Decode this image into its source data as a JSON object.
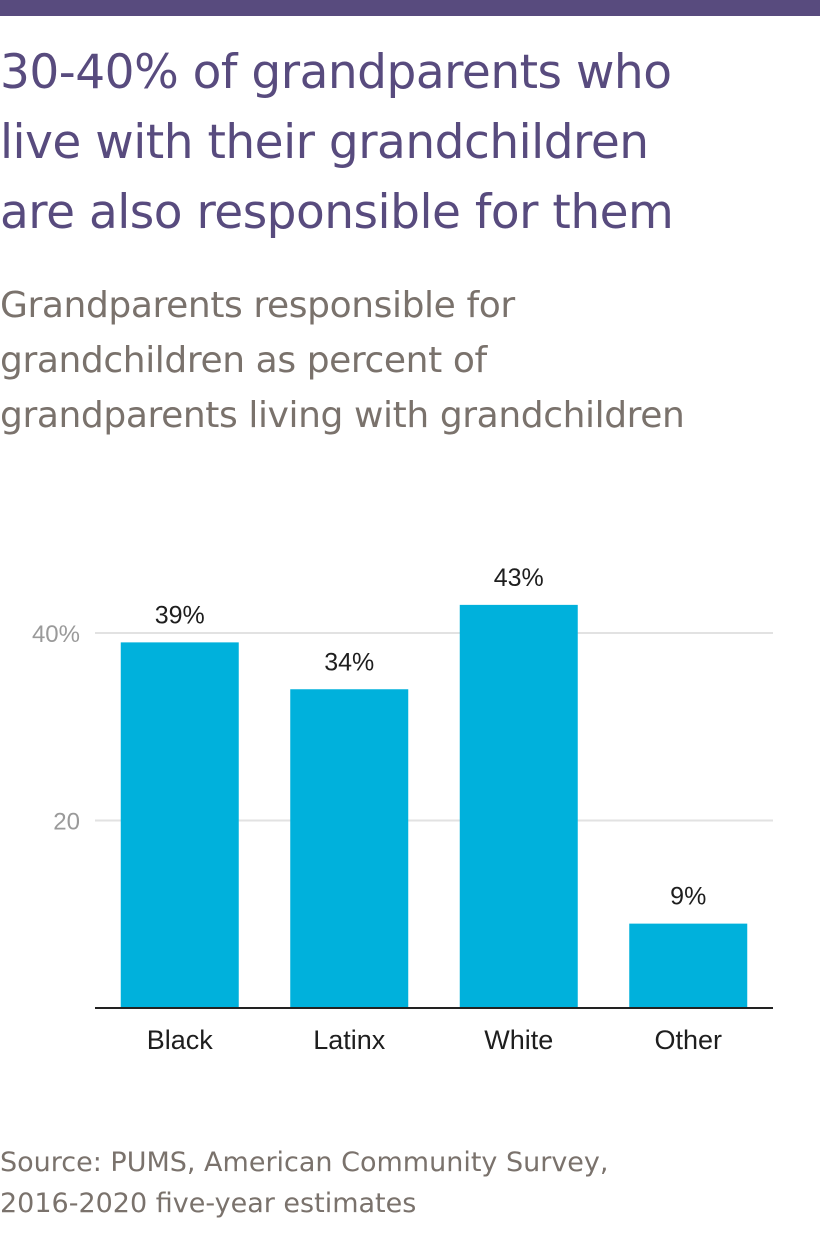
{
  "header": {
    "title": "30-40% of grandparents who\nlive with their grandchildren\nare also responsible for them",
    "subtitle": "Grandparents responsible for\ngrandchildren as percent of\ngrandparents living with grandchildren"
  },
  "colors": {
    "top_bar": "#584b7e",
    "title": "#584b7e",
    "subtitle": "#7a726c",
    "bar": "#00b1dc",
    "gridline": "#e2e2e2",
    "axis_line": "#222222",
    "tick_label": "#9a9a9a",
    "label": "#1e1e1e",
    "source": "#7a726c"
  },
  "chart_data": {
    "type": "bar",
    "categories": [
      "Black",
      "Latinx",
      "White",
      "Other"
    ],
    "values": [
      39,
      34,
      43,
      9
    ],
    "value_labels": [
      "39%",
      "34%",
      "43%",
      "9%"
    ],
    "ylim": [
      0,
      40
    ],
    "yticks": [
      {
        "value": 20,
        "label": "20"
      },
      {
        "value": 40,
        "label": "40%"
      }
    ],
    "grid": true,
    "legend": "none"
  },
  "footer": {
    "source": "Source: PUMS, American Community Survey,\n2016-2020 five-year estimates"
  }
}
